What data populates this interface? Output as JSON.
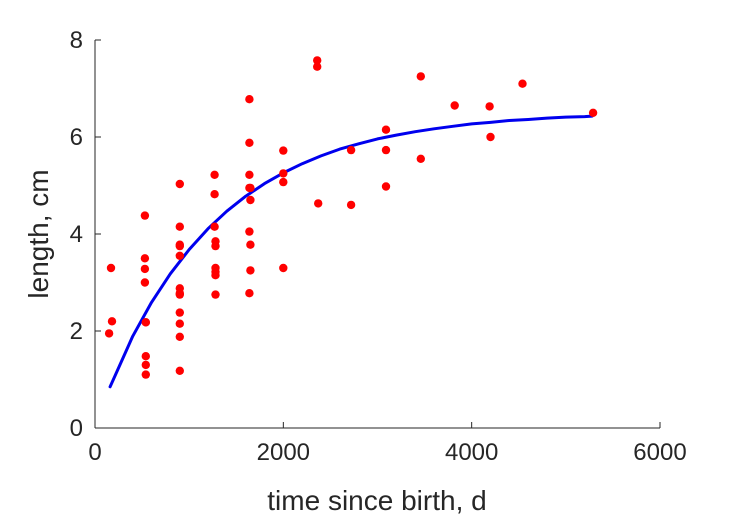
{
  "chart_data": {
    "type": "scatter",
    "xlabel": "time since birth, d",
    "ylabel": "length, cm",
    "xlim": [
      0,
      6000
    ],
    "ylim": [
      0,
      8
    ],
    "xticks": [
      0,
      2000,
      4000,
      6000
    ],
    "yticks": [
      0,
      2,
      4,
      6,
      8
    ],
    "grid": false,
    "colors": {
      "points": "#ff0000",
      "fit": "#0000ee",
      "axis": "#262626"
    },
    "series": [
      {
        "type": "scatter",
        "x": [
          150,
          170,
          180,
          530,
          530,
          530,
          530,
          540,
          540,
          540,
          540,
          540,
          900,
          900,
          900,
          900,
          900,
          900,
          900,
          900,
          900,
          900,
          900,
          900,
          1270,
          1270,
          1270,
          1280,
          1280,
          1280,
          1280,
          1280,
          1280,
          1640,
          1640,
          1640,
          1640,
          1640,
          1640,
          1650,
          1650,
          1650,
          1650,
          2000,
          2000,
          2000,
          2000,
          2360,
          2360,
          2370,
          2720,
          2720,
          3090,
          3090,
          3090,
          3460,
          3460,
          3820,
          4190,
          4200,
          4540,
          5290
        ],
        "y": [
          1.95,
          3.3,
          2.2,
          4.38,
          3.5,
          3.28,
          3.0,
          2.18,
          1.48,
          1.3,
          1.1,
          2.18,
          5.03,
          4.15,
          3.78,
          3.55,
          2.88,
          2.78,
          2.38,
          2.15,
          1.88,
          1.18,
          3.75,
          2.75,
          5.22,
          4.82,
          4.15,
          3.85,
          3.75,
          3.3,
          3.15,
          2.75,
          3.22,
          6.78,
          5.88,
          5.22,
          4.95,
          4.05,
          2.78,
          4.7,
          3.78,
          3.25,
          4.95,
          5.72,
          5.25,
          5.07,
          3.3,
          7.58,
          7.45,
          4.63,
          5.73,
          4.6,
          6.15,
          5.73,
          4.98,
          7.25,
          5.55,
          6.65,
          6.63,
          6.0,
          7.1,
          6.5
        ]
      },
      {
        "type": "line",
        "x": [
          160,
          400,
          600,
          800,
          1000,
          1200,
          1400,
          1600,
          1800,
          2000,
          2200,
          2400,
          2600,
          2800,
          3000,
          3200,
          3400,
          3600,
          3800,
          4000,
          4200,
          4400,
          4600,
          4800,
          5000,
          5200,
          5280
        ],
        "y": [
          0.85,
          1.89,
          2.59,
          3.18,
          3.68,
          4.11,
          4.47,
          4.78,
          5.04,
          5.26,
          5.45,
          5.61,
          5.75,
          5.86,
          5.96,
          6.04,
          6.11,
          6.17,
          6.22,
          6.27,
          6.3,
          6.34,
          6.36,
          6.39,
          6.41,
          6.42,
          6.43
        ]
      }
    ]
  }
}
